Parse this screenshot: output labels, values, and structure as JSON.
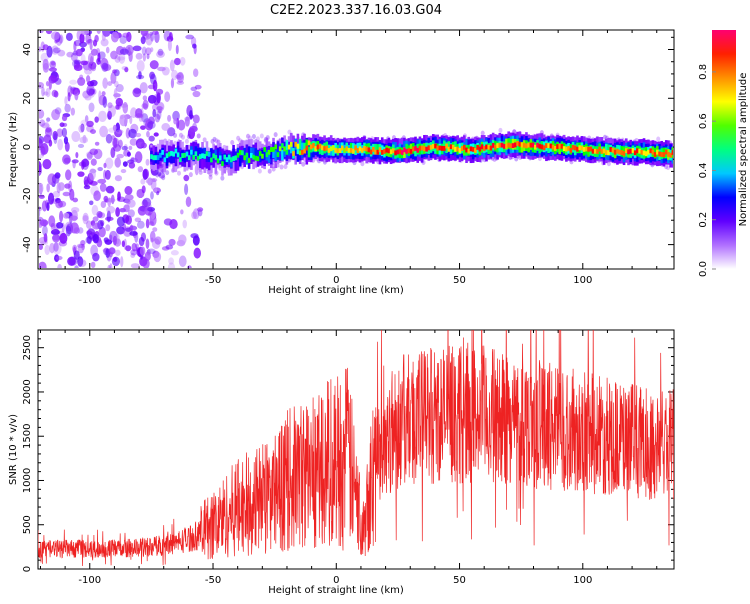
{
  "title": "C2E2.2023.337.16.03.G04",
  "colors": {
    "snr_line": "#ee2222",
    "axis": "#000000",
    "background": "#ffffff",
    "colormap": [
      "#ffffff",
      "#7a00ff",
      "#0000ff",
      "#00ffff",
      "#00ff00",
      "#ffff00",
      "#ff8800",
      "#ff0000",
      "#ff0088"
    ]
  },
  "chart_data": [
    {
      "type": "heatmap",
      "xlabel": "Height of straight line (km)",
      "ylabel": "Frequency (Hz)",
      "xlim": [
        -121,
        137
      ],
      "ylim": [
        -50,
        48
      ],
      "xticks": [
        -100,
        -50,
        0,
        50,
        100
      ],
      "yticks": [
        -40,
        -20,
        0,
        20,
        40
      ],
      "grid": false,
      "colorbar": {
        "label": "Normalized spectral amplitude",
        "range": [
          0,
          0.97
        ],
        "ticks": [
          "0.0",
          "0.2",
          "0.4",
          "0.6",
          "0.8"
        ],
        "tick_values": [
          0.0,
          0.2,
          0.4,
          0.6,
          0.8
        ]
      },
      "noise_region_x": [
        -121,
        -65
      ],
      "signal_ridge": {
        "x": [
          -75,
          -60,
          -45,
          -30,
          -20,
          -10,
          0,
          10,
          25,
          40,
          55,
          70,
          85,
          100,
          115,
          125,
          137
        ],
        "frequency": [
          -4,
          -3,
          -5,
          -3,
          -1,
          0,
          -1,
          -1,
          -2,
          0,
          -1,
          1,
          0,
          -1,
          -2,
          -2,
          -3
        ],
        "amplitude": [
          0.4,
          0.45,
          0.45,
          0.5,
          0.6,
          0.85,
          0.7,
          0.75,
          0.9,
          0.85,
          0.8,
          0.9,
          0.85,
          0.8,
          0.85,
          0.8,
          0.9
        ]
      }
    },
    {
      "type": "line",
      "xlabel": "Height of straight line (km)",
      "ylabel": "SNR (10 * v/v)",
      "xlim": [
        -121,
        137
      ],
      "ylim": [
        0,
        2700
      ],
      "xticks": [
        -100,
        -50,
        0,
        50,
        100
      ],
      "yticks": [
        0,
        500,
        1000,
        1500,
        2000,
        2500
      ],
      "grid": false,
      "series": [
        {
          "x": [
            -121,
            -110,
            -100,
            -90,
            -80,
            -70,
            -65,
            -60,
            -55,
            -50,
            -45,
            -40,
            -35,
            -30,
            -25,
            -20,
            -15,
            -10,
            -5,
            0,
            5,
            8,
            10,
            12,
            15,
            20,
            25,
            30,
            40,
            50,
            60,
            70,
            80,
            90,
            100,
            110,
            120,
            130,
            137
          ],
          "values": [
            220,
            230,
            220,
            230,
            240,
            270,
            300,
            340,
            400,
            500,
            600,
            700,
            750,
            800,
            850,
            1000,
            1050,
            1100,
            1200,
            1250,
            1300,
            800,
            550,
            700,
            1200,
            1500,
            1650,
            1700,
            1750,
            1750,
            1750,
            1700,
            1650,
            1600,
            1550,
            1500,
            1450,
            1400,
            1400
          ]
        }
      ]
    }
  ]
}
